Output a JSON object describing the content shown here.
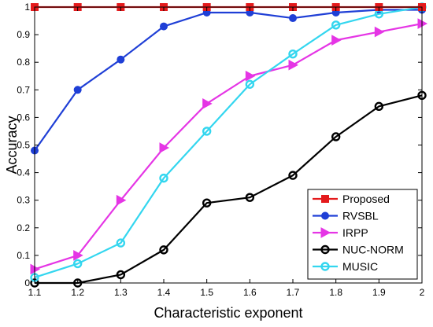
{
  "chart_data": {
    "type": "line",
    "title": "",
    "xlabel": "Characteristic exponent",
    "ylabel": "Accuracy",
    "xlim": [
      1.1,
      2
    ],
    "ylim": [
      0,
      1
    ],
    "x": [
      1.1,
      1.2,
      1.3,
      1.4,
      1.5,
      1.6,
      1.7,
      1.8,
      1.9,
      2
    ],
    "x_ticks": [
      1.1,
      1.2,
      1.3,
      1.4,
      1.5,
      1.6,
      1.7,
      1.8,
      1.9,
      2
    ],
    "x_tick_labels": [
      "1.1",
      "1.2",
      "1.3",
      "1.4",
      "1.5",
      "1.6",
      "1.7",
      "1.8",
      "1.9",
      "2"
    ],
    "y_ticks": [
      0,
      0.1,
      0.2,
      0.3,
      0.4,
      0.5,
      0.6,
      0.7,
      0.8,
      0.9,
      1
    ],
    "y_tick_labels": [
      "0",
      "0.1",
      "0.2",
      "0.3",
      "0.4",
      "0.5",
      "0.6",
      "0.7",
      "0.8",
      "0.9",
      "1"
    ],
    "grid": false,
    "legend_position": "bottom-right",
    "series": [
      {
        "name": "Proposed",
        "color": "#e41a1c",
        "marker": "square",
        "values": [
          1,
          1,
          1,
          1,
          1,
          1,
          1,
          1,
          1,
          1
        ]
      },
      {
        "name": "RVSBL",
        "color": "#1f3fd6",
        "marker": "circle",
        "values": [
          0.48,
          0.7,
          0.81,
          0.93,
          0.98,
          0.98,
          0.96,
          0.98,
          0.99,
          0.99
        ]
      },
      {
        "name": "IRPP",
        "color": "#e535e5",
        "marker": "triangle-right",
        "values": [
          0.05,
          0.1,
          0.3,
          0.49,
          0.65,
          0.75,
          0.79,
          0.88,
          0.91,
          0.94
        ]
      },
      {
        "name": "NUC-NORM",
        "color": "#000000",
        "marker": "circle-open",
        "values": [
          0.0,
          0.0,
          0.03,
          0.12,
          0.29,
          0.31,
          0.39,
          0.53,
          0.64,
          0.68
        ]
      },
      {
        "name": "MUSIC",
        "color": "#33d6ef",
        "marker": "circle-open",
        "values": [
          0.02,
          0.07,
          0.145,
          0.38,
          0.55,
          0.72,
          0.83,
          0.935,
          0.975,
          1.0
        ]
      }
    ]
  }
}
